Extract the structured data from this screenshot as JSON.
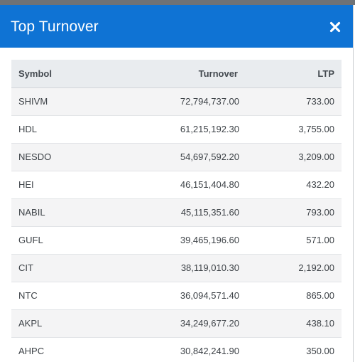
{
  "modal": {
    "title": "Top Turnover",
    "close_icon": "close-icon",
    "close_glyph": "×"
  },
  "colors": {
    "header_bg": "#0f73d4",
    "table_header_bg": "#e9ecef",
    "stripe_bg": "#f4f4f5"
  },
  "table": {
    "columns": [
      "Symbol",
      "Turnover",
      "LTP"
    ],
    "rows": [
      {
        "symbol": "SHIVM",
        "turnover": "72,794,737.00",
        "ltp": "733.00"
      },
      {
        "symbol": "HDL",
        "turnover": "61,215,192.30",
        "ltp": "3,755.00"
      },
      {
        "symbol": "NESDO",
        "turnover": "54,697,592.20",
        "ltp": "3,209.00"
      },
      {
        "symbol": "HEI",
        "turnover": "46,151,404.80",
        "ltp": "432.20"
      },
      {
        "symbol": "NABIL",
        "turnover": "45,115,351.60",
        "ltp": "793.00"
      },
      {
        "symbol": "GUFL",
        "turnover": "39,465,196.60",
        "ltp": "571.00"
      },
      {
        "symbol": "CIT",
        "turnover": "38,119,010.30",
        "ltp": "2,192.00"
      },
      {
        "symbol": "NTC",
        "turnover": "36,094,571.40",
        "ltp": "865.00"
      },
      {
        "symbol": "AKPL",
        "turnover": "34,249,677.20",
        "ltp": "438.10"
      },
      {
        "symbol": "AHPC",
        "turnover": "30,842,241.90",
        "ltp": "350.00"
      }
    ]
  }
}
